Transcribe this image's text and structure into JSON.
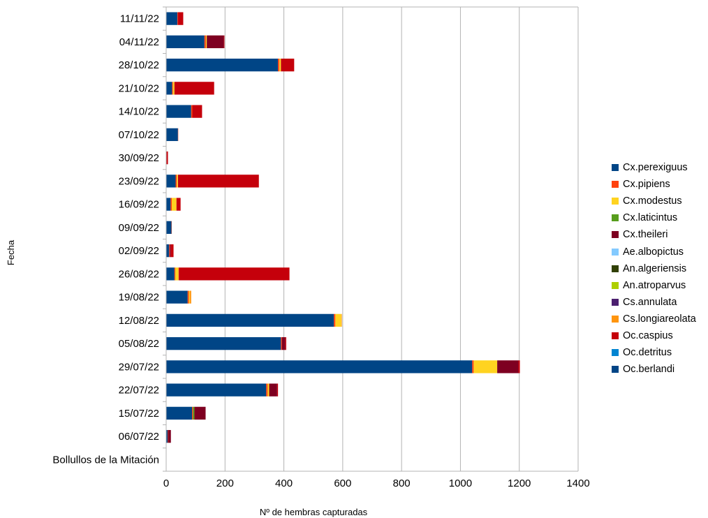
{
  "chart_data": {
    "type": "bar",
    "orientation": "horizontal",
    "stacked": true,
    "title": "",
    "xlabel": "Nº de hembras capturadas",
    "ylabel": "Fecha",
    "xlim": [
      0,
      1400
    ],
    "xticks": [
      "0",
      "200",
      "400",
      "600",
      "800",
      "1000",
      "1200",
      "1400"
    ],
    "grid": true,
    "legend_position": "right",
    "categories": [
      "Bollullos de la Mitación",
      "06/07/22",
      "15/07/22",
      "22/07/22",
      "29/07/22",
      "05/08/22",
      "12/08/22",
      "19/08/22",
      "26/08/22",
      "02/09/22",
      "09/09/22",
      "16/09/22",
      "23/09/22",
      "30/09/22",
      "07/10/22",
      "14/10/22",
      "21/10/22",
      "28/10/22",
      "04/11/22",
      "11/11/22"
    ],
    "series": [
      {
        "name": "Cx.perexiguus",
        "color": "#004586",
        "values": [
          0,
          5,
          88,
          340,
          1040,
          390,
          570,
          73,
          28,
          10,
          18,
          15,
          32,
          0,
          40,
          85,
          20,
          380,
          130,
          38
        ]
      },
      {
        "name": "Cx.pipiens",
        "color": "#ff420e",
        "values": [
          0,
          1,
          3,
          5,
          5,
          3,
          5,
          4,
          3,
          2,
          1,
          4,
          4,
          0,
          1,
          4,
          3,
          5,
          5,
          2
        ]
      },
      {
        "name": "Cx.modestus",
        "color": "#ffd320",
        "values": [
          0,
          0,
          0,
          5,
          80,
          0,
          20,
          3,
          10,
          0,
          0,
          16,
          4,
          0,
          0,
          0,
          5,
          5,
          3,
          0
        ]
      },
      {
        "name": "Cx.laticintus",
        "color": "#579d1c",
        "values": [
          0,
          0,
          5,
          0,
          0,
          0,
          0,
          0,
          0,
          0,
          0,
          0,
          0,
          0,
          0,
          0,
          0,
          0,
          0,
          0
        ]
      },
      {
        "name": "Cx.theileri",
        "color": "#7e0021",
        "values": [
          0,
          10,
          38,
          27,
          72,
          12,
          0,
          0,
          0,
          3,
          0,
          0,
          0,
          0,
          0,
          0,
          0,
          0,
          58,
          0
        ]
      },
      {
        "name": "Ae.albopictus",
        "color": "#83caff",
        "values": [
          0,
          0,
          0,
          0,
          0,
          0,
          0,
          0,
          0,
          0,
          0,
          0,
          0,
          0,
          0,
          0,
          0,
          0,
          0,
          0
        ]
      },
      {
        "name": "An.algeriensis",
        "color": "#314004",
        "values": [
          0,
          0,
          0,
          0,
          0,
          0,
          0,
          0,
          0,
          0,
          0,
          0,
          0,
          0,
          0,
          0,
          0,
          0,
          0,
          0
        ]
      },
      {
        "name": "An.atroparvus",
        "color": "#aecf00",
        "values": [
          0,
          0,
          0,
          0,
          0,
          0,
          0,
          0,
          0,
          0,
          0,
          0,
          0,
          0,
          0,
          0,
          0,
          0,
          0,
          0
        ]
      },
      {
        "name": "Cs.annulata",
        "color": "#4b1f6f",
        "values": [
          0,
          0,
          0,
          0,
          0,
          0,
          0,
          0,
          0,
          0,
          0,
          0,
          0,
          0,
          0,
          0,
          0,
          0,
          0,
          0
        ]
      },
      {
        "name": "Cs.longiareolata",
        "color": "#ff950e",
        "values": [
          0,
          0,
          0,
          0,
          0,
          0,
          2,
          5,
          2,
          0,
          0,
          0,
          0,
          0,
          0,
          0,
          0,
          0,
          0,
          0
        ]
      },
      {
        "name": "Oc.caspius",
        "color": "#c5000b",
        "values": [
          0,
          0,
          0,
          3,
          5,
          3,
          0,
          0,
          376,
          10,
          0,
          14,
          275,
          6,
          0,
          33,
          135,
          45,
          2,
          18
        ]
      },
      {
        "name": "Oc.detritus",
        "color": "#0084d1",
        "values": [
          0,
          0,
          0,
          0,
          0,
          0,
          0,
          0,
          0,
          0,
          0,
          0,
          0,
          0,
          0,
          0,
          0,
          0,
          0,
          0
        ]
      },
      {
        "name": "Oc.berlandi",
        "color": "#004586",
        "values": [
          0,
          0,
          0,
          0,
          0,
          0,
          0,
          0,
          0,
          0,
          0,
          0,
          0,
          0,
          0,
          0,
          0,
          0,
          0,
          0
        ]
      }
    ]
  }
}
